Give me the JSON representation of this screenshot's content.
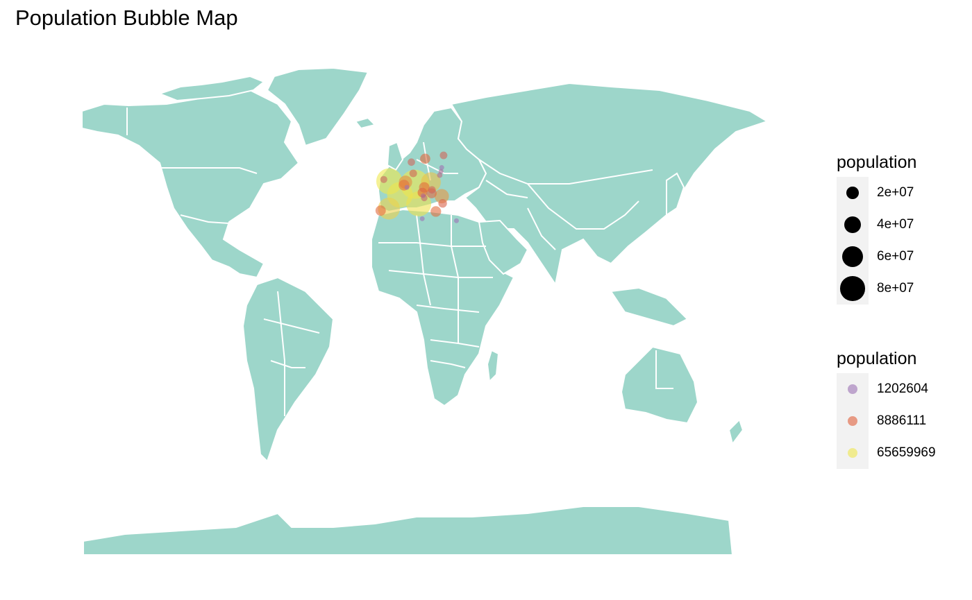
{
  "title": "Population Bubble Map",
  "map": {
    "land_color": "#9dd6ca",
    "border_color": "#ffffff"
  },
  "chart_data": {
    "type": "scatter",
    "title": "Population Bubble Map",
    "x_label": "",
    "y_label": "",
    "points": [
      {
        "lon": -3.5,
        "lat": 52.5,
        "population": 65659969
      },
      {
        "lon": -6.5,
        "lat": 53.3,
        "population": 4800000
      },
      {
        "lon": 2.3,
        "lat": 46.5,
        "population": 64000000
      },
      {
        "lon": -3.7,
        "lat": 40.4,
        "population": 46500000
      },
      {
        "lon": -8.2,
        "lat": 39.5,
        "population": 10300000
      },
      {
        "lon": 10.4,
        "lat": 51.2,
        "population": 82000000
      },
      {
        "lon": 12.5,
        "lat": 42.5,
        "population": 60000000
      },
      {
        "lon": 19.1,
        "lat": 52.1,
        "population": 38000000
      },
      {
        "lon": 25.0,
        "lat": 45.9,
        "population": 19800000
      },
      {
        "lon": 21.8,
        "lat": 39.1,
        "population": 10800000
      },
      {
        "lon": 14.5,
        "lat": 47.5,
        "population": 8886111
      },
      {
        "lon": 4.5,
        "lat": 50.8,
        "population": 11300000
      },
      {
        "lon": 5.3,
        "lat": 52.1,
        "population": 17000000
      },
      {
        "lon": 15.5,
        "lat": 49.8,
        "population": 10600000
      },
      {
        "lon": 19.5,
        "lat": 47.2,
        "population": 9800000
      },
      {
        "lon": 16.0,
        "lat": 62.5,
        "population": 10000000
      },
      {
        "lon": 9.5,
        "lat": 56.0,
        "population": 5700000
      },
      {
        "lon": 8.5,
        "lat": 61.0,
        "population": 5300000
      },
      {
        "lon": 26.0,
        "lat": 64.0,
        "population": 5500000
      },
      {
        "lon": 25.5,
        "lat": 42.7,
        "population": 7100000
      },
      {
        "lon": 23.9,
        "lat": 55.2,
        "population": 2800000
      },
      {
        "lon": 24.6,
        "lat": 56.9,
        "population": 1900000
      },
      {
        "lon": 25.0,
        "lat": 58.6,
        "population": 1300000
      },
      {
        "lon": 33.0,
        "lat": 35.0,
        "population": 1202604
      },
      {
        "lon": 14.4,
        "lat": 35.9,
        "population": 480000
      },
      {
        "lon": 14.9,
        "lat": 46.1,
        "population": 2070000
      },
      {
        "lon": 15.5,
        "lat": 45.1,
        "population": 4100000
      },
      {
        "lon": 19.7,
        "lat": 48.7,
        "population": 5400000
      },
      {
        "lon": 6.1,
        "lat": 49.8,
        "population": 600000
      }
    ],
    "size_legend": {
      "title": "population",
      "breaks": [
        "2e+07",
        "4e+07",
        "6e+07",
        "8e+07"
      ],
      "break_values": [
        20000000,
        40000000,
        60000000,
        80000000
      ]
    },
    "color_legend": {
      "title": "population",
      "breaks": [
        "1202604",
        "8886111",
        "65659969"
      ],
      "break_values": [
        1202604,
        8886111,
        65659969
      ],
      "colors": [
        "#9c72b5",
        "#e0603c",
        "#efe74f"
      ]
    }
  }
}
